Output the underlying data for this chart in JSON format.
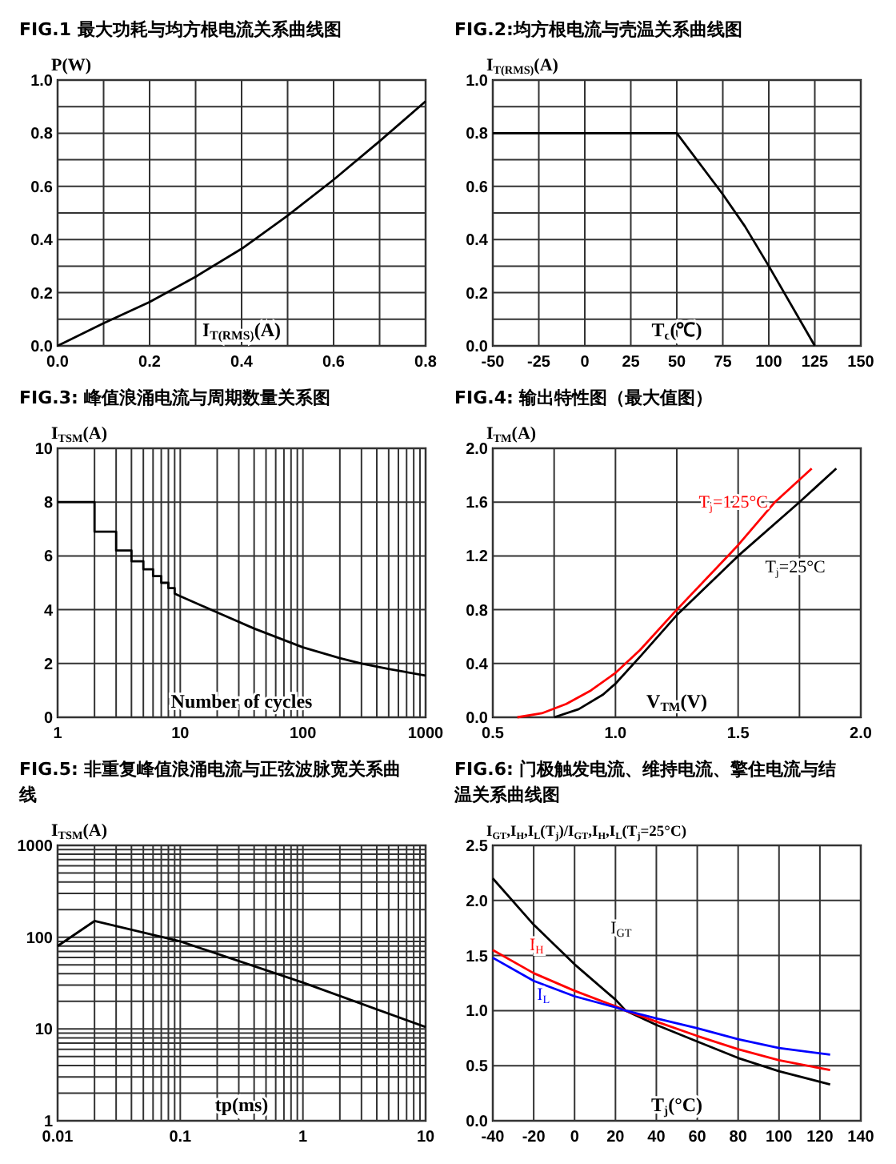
{
  "chart_data": [
    {
      "type": "line",
      "title": "FIG.1 最大功耗与均方根电流关系曲线图",
      "xlabel": "I$_{T(RMS)}$(A)",
      "ylabel": "P(W)",
      "grid": true,
      "x": [
        0,
        0.1,
        0.2,
        0.3,
        0.4,
        0.5,
        0.6,
        0.7,
        0.8
      ],
      "series": [
        {
          "color": "#000000",
          "values": [
            0,
            0.085,
            0.165,
            0.26,
            0.365,
            0.49,
            0.625,
            0.77,
            0.92
          ]
        }
      ],
      "xlim": [
        0,
        0.8
      ],
      "xticks": [
        {
          "value": 0,
          "label": "0.0"
        },
        {
          "value": 0.1,
          "label": null
        },
        0.2,
        {
          "value": 0.3,
          "label": null
        },
        0.4,
        {
          "value": 0.5,
          "label": null
        },
        0.6,
        {
          "value": 0.7,
          "label": null
        },
        0.8
      ],
      "ylim": [
        0,
        1
      ],
      "yticks": [
        {
          "value": 0,
          "label": "0.0"
        },
        {
          "value": 0.1,
          "label": null
        },
        0.2,
        {
          "value": 0.3,
          "label": null
        },
        0.4,
        {
          "value": 0.5,
          "label": null
        },
        0.6,
        {
          "value": 0.7,
          "label": null
        },
        0.8,
        {
          "value": 0.9,
          "label": null
        },
        {
          "value": 1,
          "label": "1.0"
        }
      ]
    },
    {
      "type": "line",
      "title": "FIG.2:均方根电流与壳温关系曲线图",
      "xlabel": "T$_{c}$(℃)",
      "ylabel": "I$_{T(RMS)}$(A)",
      "grid": true,
      "x": [
        -50,
        50,
        75,
        87,
        100,
        125
      ],
      "series": [
        {
          "color": "#000000",
          "values": [
            0.8,
            0.8,
            0.57,
            0.45,
            0.3,
            0
          ]
        }
      ],
      "xlim": [
        -50,
        150
      ],
      "xticks": [
        -50,
        -25,
        0,
        25,
        50,
        75,
        100,
        125,
        150
      ],
      "ylim": [
        0,
        1
      ],
      "yticks": [
        {
          "value": 0,
          "label": "0.0"
        },
        {
          "value": 0.1,
          "label": null
        },
        0.2,
        {
          "value": 0.3,
          "label": null
        },
        0.4,
        {
          "value": 0.5,
          "label": null
        },
        0.6,
        {
          "value": 0.7,
          "label": null
        },
        0.8,
        {
          "value": 0.9,
          "label": null
        },
        {
          "value": 1,
          "label": "1.0"
        }
      ]
    },
    {
      "type": "line",
      "title": "FIG.3: 峰值浪涌电流与周期数量关系图",
      "xlabel": "Number of cycles",
      "ylabel": "I$_{TSM}$(A)",
      "grid": true,
      "log": "x",
      "x": [
        1,
        2,
        2,
        3,
        3,
        4,
        4,
        5,
        5,
        6,
        6,
        7,
        7,
        8,
        8,
        9,
        9,
        10,
        20,
        40,
        100,
        200,
        300,
        500,
        1000
      ],
      "series": [
        {
          "color": "#000000",
          "values": [
            8,
            8,
            6.9,
            6.9,
            6.2,
            6.2,
            5.8,
            5.8,
            5.5,
            5.5,
            5.25,
            5.25,
            5.0,
            5.0,
            4.8,
            4.8,
            4.6,
            4.5,
            3.9,
            3.3,
            2.6,
            2.2,
            2.0,
            1.8,
            1.55
          ]
        }
      ],
      "xlim": [
        1,
        1000
      ],
      "xticks": [
        1,
        {
          "value": 2,
          "label": null
        },
        {
          "value": 3,
          "label": null
        },
        {
          "value": 4,
          "label": null
        },
        {
          "value": 5,
          "label": null
        },
        {
          "value": 6,
          "label": null
        },
        {
          "value": 7,
          "label": null
        },
        {
          "value": 8,
          "label": null
        },
        {
          "value": 9,
          "label": null
        },
        10,
        {
          "value": 20,
          "label": null
        },
        {
          "value": 30,
          "label": null
        },
        {
          "value": 40,
          "label": null
        },
        {
          "value": 50,
          "label": null
        },
        {
          "value": 60,
          "label": null
        },
        {
          "value": 70,
          "label": null
        },
        {
          "value": 80,
          "label": null
        },
        {
          "value": 90,
          "label": null
        },
        100,
        {
          "value": 200,
          "label": null
        },
        {
          "value": 300,
          "label": null
        },
        {
          "value": 400,
          "label": null
        },
        {
          "value": 500,
          "label": null
        },
        {
          "value": 600,
          "label": null
        },
        {
          "value": 700,
          "label": null
        },
        {
          "value": 800,
          "label": null
        },
        {
          "value": 900,
          "label": null
        },
        1000
      ],
      "ylim": [
        0,
        10
      ],
      "yticks": [
        0,
        2,
        4,
        6,
        8,
        10
      ]
    },
    {
      "type": "line",
      "title": "FIG.4: 输出特性图（最大值图）",
      "xlabel": "V$_{TM}$(V)",
      "ylabel": "I$_{TM}$(A)",
      "grid": true,
      "series": [
        {
          "name": "T$_{j}$=125°C",
          "color": "#ff0000",
          "x": [
            0.6,
            0.7,
            0.8,
            0.9,
            1.0,
            1.1,
            1.25,
            1.5,
            1.65,
            1.8
          ],
          "values": [
            0,
            0.03,
            0.1,
            0.2,
            0.33,
            0.5,
            0.8,
            1.28,
            1.6,
            1.85
          ]
        },
        {
          "name": "T$_{j}$=25°C",
          "color": "#000000",
          "x": [
            0.75,
            0.85,
            0.95,
            1.0,
            1.1,
            1.25,
            1.5,
            1.75,
            1.9
          ],
          "values": [
            0,
            0.06,
            0.17,
            0.25,
            0.45,
            0.76,
            1.2,
            1.6,
            1.85
          ]
        }
      ],
      "xlim": [
        0.5,
        2.0
      ],
      "xticks": [
        0.5,
        {
          "value": 0.75,
          "label": null
        },
        {
          "value": 1,
          "label": "1.0"
        },
        {
          "value": 1.25,
          "label": null
        },
        1.5,
        {
          "value": 1.75,
          "label": null
        },
        {
          "value": 2,
          "label": "2.0"
        }
      ],
      "ylim": [
        0,
        2
      ],
      "yticks": [
        {
          "value": 0,
          "label": "0.0"
        },
        0.4,
        0.8,
        1.2,
        1.6,
        {
          "value": 2,
          "label": "2.0"
        }
      ]
    },
    {
      "type": "line",
      "title": "FIG.5: 非重复峰值浪涌电流与正弦波脉宽关系曲线",
      "xlabel": "tp(ms)",
      "ylabel": "I$_{TSM}$(A)",
      "grid": true,
      "log": "xy",
      "x": [
        0.01,
        0.02,
        0.1,
        1,
        10
      ],
      "series": [
        {
          "color": "#000000",
          "values": [
            80,
            150,
            90,
            32,
            10.5
          ]
        }
      ],
      "xlim": [
        0.01,
        10
      ],
      "xticks": [
        0.01,
        {
          "value": 0.02,
          "label": null
        },
        {
          "value": 0.03,
          "label": null
        },
        {
          "value": 0.04,
          "label": null
        },
        {
          "value": 0.05,
          "label": null
        },
        {
          "value": 0.06,
          "label": null
        },
        {
          "value": 0.07,
          "label": null
        },
        {
          "value": 0.08,
          "label": null
        },
        {
          "value": 0.09,
          "label": null
        },
        0.1,
        {
          "value": 0.2,
          "label": null
        },
        {
          "value": 0.3,
          "label": null
        },
        {
          "value": 0.4,
          "label": null
        },
        {
          "value": 0.5,
          "label": null
        },
        {
          "value": 0.6,
          "label": null
        },
        {
          "value": 0.7,
          "label": null
        },
        {
          "value": 0.8,
          "label": null
        },
        {
          "value": 0.9,
          "label": null
        },
        1,
        {
          "value": 2,
          "label": null
        },
        {
          "value": 3,
          "label": null
        },
        {
          "value": 4,
          "label": null
        },
        {
          "value": 5,
          "label": null
        },
        {
          "value": 6,
          "label": null
        },
        {
          "value": 7,
          "label": null
        },
        {
          "value": 8,
          "label": null
        },
        {
          "value": 9,
          "label": null
        },
        10
      ],
      "ylim": [
        1,
        1000
      ],
      "yticks": [
        1,
        {
          "value": 2,
          "label": null
        },
        {
          "value": 3,
          "label": null
        },
        {
          "value": 4,
          "label": null
        },
        {
          "value": 5,
          "label": null
        },
        {
          "value": 6,
          "label": null
        },
        {
          "value": 7,
          "label": null
        },
        {
          "value": 8,
          "label": null
        },
        {
          "value": 9,
          "label": null
        },
        10,
        {
          "value": 20,
          "label": null
        },
        {
          "value": 30,
          "label": null
        },
        {
          "value": 40,
          "label": null
        },
        {
          "value": 50,
          "label": null
        },
        {
          "value": 60,
          "label": null
        },
        {
          "value": 70,
          "label": null
        },
        {
          "value": 80,
          "label": null
        },
        {
          "value": 90,
          "label": null
        },
        100,
        {
          "value": 200,
          "label": null
        },
        {
          "value": 300,
          "label": null
        },
        {
          "value": 400,
          "label": null
        },
        {
          "value": 500,
          "label": null
        },
        {
          "value": 600,
          "label": null
        },
        {
          "value": 700,
          "label": null
        },
        {
          "value": 800,
          "label": null
        },
        {
          "value": 900,
          "label": null
        },
        1000
      ]
    },
    {
      "type": "line",
      "title": "FIG.6: 门极触发电流、维持电流、擎住电流与结温关系曲线图",
      "xlabel": "T$_{j}$(°C)",
      "ylabel": "I$_{GT}$,I$_{H}$,I$_{L}$(T$_{j}$)/I$_{GT}$,I$_{H}$,I$_{L}$(T$_{j}$=25°C)",
      "grid": true,
      "x": [
        -40,
        -20,
        0,
        20,
        25,
        40,
        60,
        80,
        100,
        125
      ],
      "series": [
        {
          "name": "I$_{GT}$",
          "color": "#000000",
          "values": [
            2.2,
            1.78,
            1.42,
            1.1,
            1.0,
            0.87,
            0.72,
            0.57,
            0.45,
            0.33
          ]
        },
        {
          "name": "I$_{H}$",
          "color": "#ff0000",
          "values": [
            1.55,
            1.34,
            1.18,
            1.04,
            1.0,
            0.9,
            0.77,
            0.65,
            0.55,
            0.46
          ]
        },
        {
          "name": "I$_{L}$",
          "color": "#0000ff",
          "values": [
            1.48,
            1.27,
            1.13,
            1.03,
            1.0,
            0.93,
            0.84,
            0.74,
            0.66,
            0.6
          ]
        }
      ],
      "xlim": [
        -40,
        140
      ],
      "xticks": [
        -40,
        -20,
        0,
        20,
        40,
        60,
        80,
        100,
        120,
        140
      ],
      "ylim": [
        0,
        2.5
      ],
      "yticks": [
        {
          "value": 0,
          "label": "0.0"
        },
        0.5,
        {
          "value": 1,
          "label": "1.0"
        },
        1.5,
        {
          "value": 2,
          "label": "2.0"
        },
        2.5
      ]
    }
  ]
}
